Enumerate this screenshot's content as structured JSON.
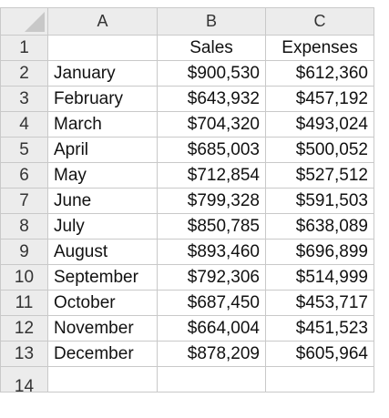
{
  "columns": [
    "A",
    "B",
    "C"
  ],
  "header_row": {
    "row": "1",
    "a": "",
    "b": "Sales",
    "c": "Expenses"
  },
  "rows": [
    {
      "row": "2",
      "month": "January",
      "sales": "$900,530",
      "expenses": "$612,360"
    },
    {
      "row": "3",
      "month": "February",
      "sales": "$643,932",
      "expenses": "$457,192"
    },
    {
      "row": "4",
      "month": "March",
      "sales": "$704,320",
      "expenses": "$493,024"
    },
    {
      "row": "5",
      "month": "April",
      "sales": "$685,003",
      "expenses": "$500,052"
    },
    {
      "row": "6",
      "month": "May",
      "sales": "$712,854",
      "expenses": "$527,512"
    },
    {
      "row": "7",
      "month": "June",
      "sales": "$799,328",
      "expenses": "$591,503"
    },
    {
      "row": "8",
      "month": "July",
      "sales": "$850,785",
      "expenses": "$638,089"
    },
    {
      "row": "9",
      "month": "August",
      "sales": "$893,460",
      "expenses": "$696,899"
    },
    {
      "row": "10",
      "month": "September",
      "sales": "$792,306",
      "expenses": "$514,999"
    },
    {
      "row": "11",
      "month": "October",
      "sales": "$687,450",
      "expenses": "$453,717"
    },
    {
      "row": "12",
      "month": "November",
      "sales": "$664,004",
      "expenses": "$451,523"
    },
    {
      "row": "13",
      "month": "December",
      "sales": "$878,209",
      "expenses": "$605,964"
    }
  ],
  "partial_row": {
    "row": "14"
  },
  "colors": {
    "header_bg": "#ececec",
    "grid": "#c9c9c9",
    "text": "#111111"
  }
}
